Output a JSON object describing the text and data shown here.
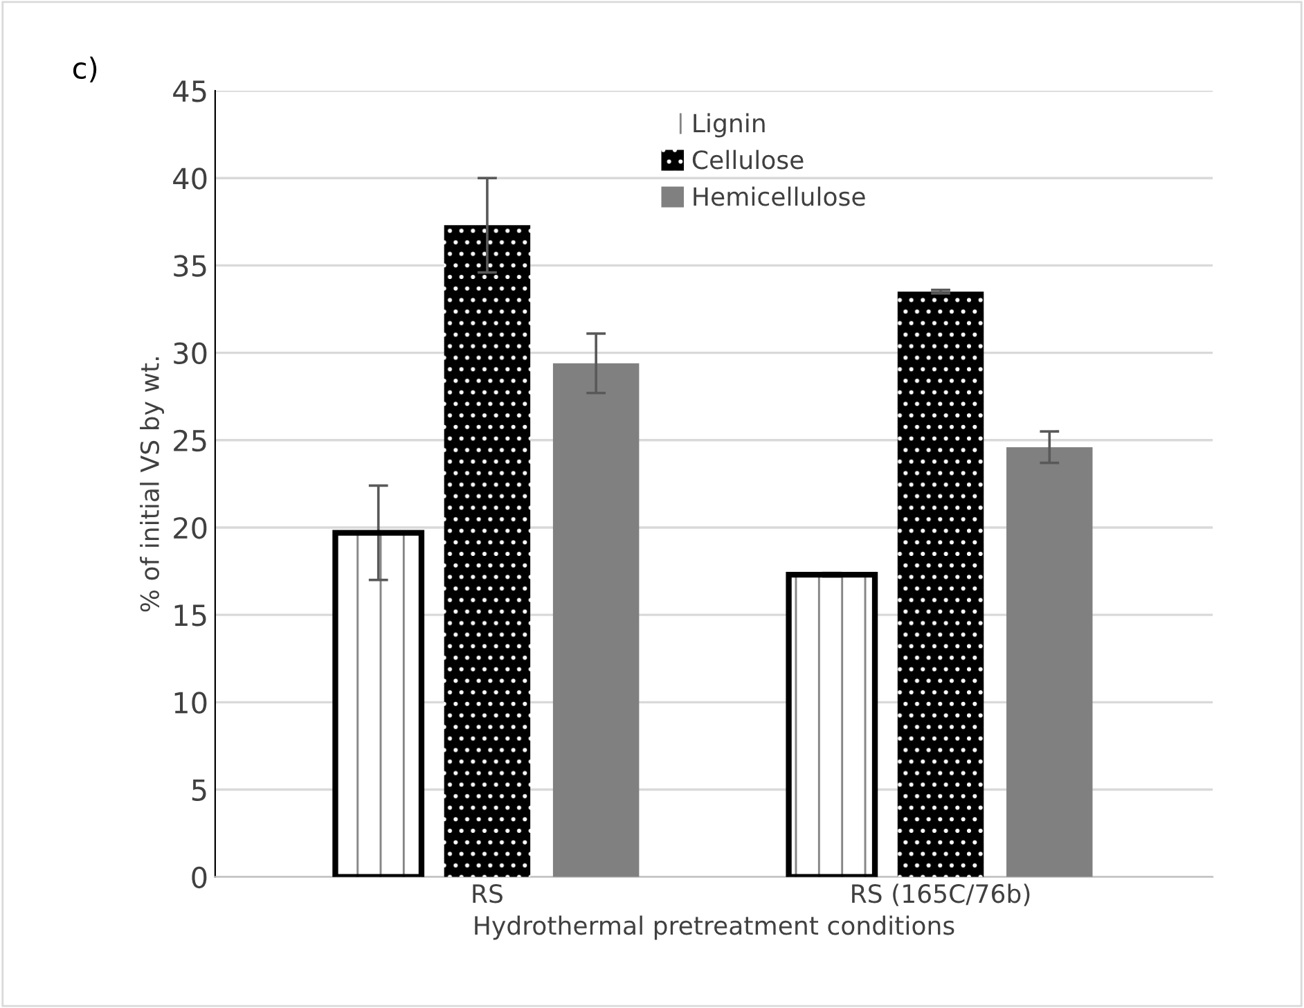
{
  "chart_data": {
    "type": "bar",
    "xlabel": "Hydrothermal pretreatment conditions",
    "ylabel": "% of initial VS by wt.",
    "annotations": [
      "c)"
    ],
    "categories": [
      "RS",
      "RS (165C/76b)"
    ],
    "series": [
      {
        "name": "Lignin",
        "color": "#ffffff",
        "values": [
          19.7,
          17.3
        ],
        "errors": [
          2.7,
          0.1
        ]
      },
      {
        "name": "Cellulose",
        "color": "#000000",
        "values": [
          37.3,
          33.5
        ],
        "errors": [
          2.7,
          0.1
        ]
      },
      {
        "name": "Hemicellulose",
        "color": "#808080",
        "values": [
          29.4,
          24.6
        ],
        "errors": [
          1.7,
          0.9
        ]
      }
    ],
    "ylim": [
      0,
      45
    ],
    "yticks": [
      0,
      5,
      10,
      15,
      20,
      25,
      30,
      35,
      40,
      45
    ],
    "grid": "y",
    "legend": "top"
  }
}
